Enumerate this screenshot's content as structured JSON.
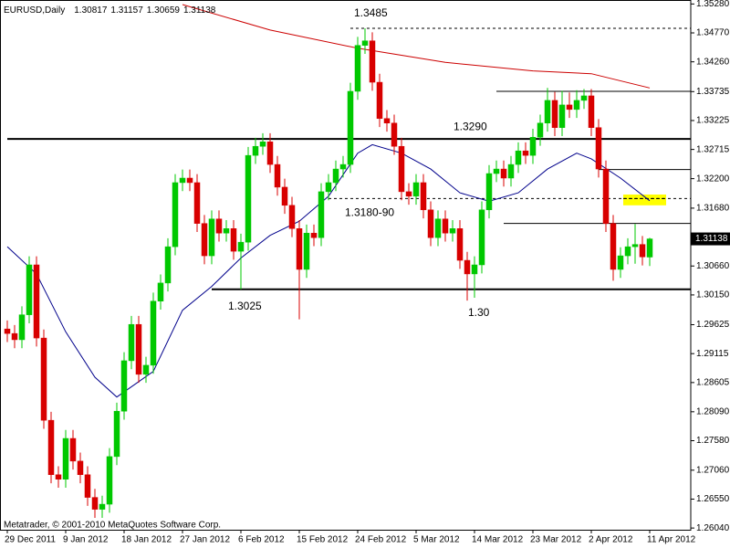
{
  "chart_data": {
    "type": "candlestick",
    "title": "EURUSD,Daily",
    "footer": "Metatrader, © 2001-2010 MetaQuotes Software Corp.",
    "categories": [
      "29 Dec 2011",
      null,
      null,
      null,
      null,
      null,
      null,
      null,
      "9 Jan 2012",
      null,
      null,
      null,
      null,
      null,
      null,
      null,
      "18 Jan 2012",
      null,
      null,
      null,
      null,
      null,
      null,
      null,
      "27 Jan 2012",
      null,
      null,
      null,
      null,
      null,
      null,
      null,
      "6 Feb 2012",
      null,
      null,
      null,
      null,
      null,
      null,
      null,
      "15 Feb 2012",
      null,
      null,
      null,
      null,
      null,
      null,
      null,
      "24 Feb 2012",
      null,
      null,
      null,
      null,
      null,
      null,
      null,
      "5 Mar 2012",
      null,
      null,
      null,
      null,
      null,
      null,
      null,
      "14 Mar 2012",
      null,
      null,
      null,
      null,
      null,
      null,
      null,
      "23 Mar 2012",
      null,
      null,
      null,
      null,
      null,
      null,
      null,
      "2 Apr 2012",
      null,
      null,
      null,
      null,
      null,
      null,
      null,
      "11 Apr 2012"
    ],
    "open": [
      1.2955,
      1.2947,
      1.2936,
      1.298,
      1.3068,
      1.2939,
      1.2794,
      1.2698,
      1.269,
      1.2762,
      1.2722,
      1.2698,
      1.2658,
      1.2637,
      1.2646,
      1.273,
      1.281,
      1.2899,
      1.2963,
      1.2875,
      1.2891,
      1.3004,
      1.3036,
      1.31,
      1.3213,
      1.3221,
      1.3213,
      1.3141,
      1.3084,
      1.3149,
      1.3124,
      1.3132,
      1.3092,
      1.3108,
      1.3261,
      1.3277,
      1.3285,
      1.3245,
      1.3205,
      1.3173,
      1.3132,
      1.306,
      1.3124,
      1.3116,
      1.3197,
      1.3213,
      1.3237,
      1.3245,
      1.3374,
      1.3455,
      1.3463,
      1.339,
      1.3326,
      1.3318,
      1.3277,
      1.3197,
      1.3189,
      1.3213,
      1.3165,
      1.3116,
      1.3149,
      1.3124,
      1.3132,
      1.3076,
      1.3052,
      1.3068,
      1.3165,
      1.3229,
      1.3237,
      1.3221,
      1.3245,
      1.3269,
      1.3261,
      1.3293,
      1.3318,
      1.3358,
      1.331,
      1.335,
      1.3342,
      1.3358,
      1.3366,
      1.331,
      1.3237,
      1.3141,
      1.306,
      1.3084,
      1.31,
      1.3104,
      1.30817
    ],
    "high": [
      1.297,
      1.2962,
      1.2995,
      1.3083,
      1.3083,
      1.2954,
      1.2809,
      1.2713,
      1.2777,
      1.2777,
      1.2737,
      1.2713,
      1.2673,
      1.2661,
      1.2745,
      1.2825,
      1.2914,
      1.2978,
      1.2978,
      1.2906,
      1.3019,
      1.3051,
      1.3115,
      1.3228,
      1.3236,
      1.3236,
      1.3228,
      1.3156,
      1.3164,
      1.3164,
      1.3147,
      1.3147,
      1.3123,
      1.3276,
      1.3292,
      1.33,
      1.33,
      1.326,
      1.322,
      1.3188,
      1.3147,
      1.3139,
      1.3139,
      1.3212,
      1.3228,
      1.3252,
      1.326,
      1.3389,
      1.347,
      1.3485,
      1.3478,
      1.3405,
      1.3341,
      1.3333,
      1.3292,
      1.3212,
      1.3228,
      1.3228,
      1.318,
      1.3164,
      1.3164,
      1.3147,
      1.3147,
      1.3091,
      1.3083,
      1.318,
      1.3244,
      1.3252,
      1.3252,
      1.326,
      1.3284,
      1.3284,
      1.3308,
      1.3333,
      1.338,
      1.3373,
      1.3375,
      1.3372,
      1.3376,
      1.3378,
      1.3378,
      1.3325,
      1.3252,
      1.3156,
      1.3099,
      1.3115,
      1.314,
      1.3119,
      1.31157
    ],
    "low": [
      1.2932,
      1.2921,
      1.2921,
      1.2965,
      1.2924,
      1.2779,
      1.2683,
      1.2675,
      1.2675,
      1.2707,
      1.2683,
      1.2643,
      1.2622,
      1.2622,
      1.2631,
      1.2715,
      1.2795,
      1.2884,
      1.286,
      1.286,
      1.2876,
      1.2989,
      1.3021,
      1.3085,
      1.3198,
      1.3198,
      1.3126,
      1.3069,
      1.3069,
      1.3109,
      1.3109,
      1.3077,
      1.3025,
      1.3093,
      1.3246,
      1.3262,
      1.323,
      1.319,
      1.3158,
      1.3117,
      1.2972,
      1.3045,
      1.3101,
      1.3101,
      1.3182,
      1.3198,
      1.3222,
      1.323,
      1.3359,
      1.344,
      1.3375,
      1.3311,
      1.3303,
      1.3262,
      1.3182,
      1.3174,
      1.3174,
      1.315,
      1.3101,
      1.3101,
      1.3109,
      1.3109,
      1.3061,
      1.3005,
      1.301,
      1.3053,
      1.315,
      1.3214,
      1.3206,
      1.3206,
      1.323,
      1.3246,
      1.3246,
      1.3278,
      1.3303,
      1.3295,
      1.3295,
      1.3327,
      1.3327,
      1.3343,
      1.3295,
      1.3222,
      1.3126,
      1.304,
      1.3045,
      1.3069,
      1.307,
      1.3067,
      1.30659
    ],
    "close": [
      1.2947,
      1.2936,
      1.298,
      1.3068,
      1.2939,
      1.2794,
      1.2698,
      1.269,
      1.2762,
      1.2722,
      1.2698,
      1.2658,
      1.2637,
      1.2646,
      1.273,
      1.281,
      1.2899,
      1.2963,
      1.2875,
      1.2891,
      1.3004,
      1.3036,
      1.31,
      1.3213,
      1.3221,
      1.3213,
      1.3141,
      1.3084,
      1.3149,
      1.3124,
      1.3132,
      1.3092,
      1.3108,
      1.3261,
      1.3277,
      1.3285,
      1.3245,
      1.3205,
      1.3173,
      1.3132,
      1.306,
      1.3124,
      1.3116,
      1.3197,
      1.3213,
      1.3237,
      1.3245,
      1.3374,
      1.3455,
      1.3463,
      1.339,
      1.3326,
      1.3318,
      1.3277,
      1.3197,
      1.3189,
      1.3213,
      1.3165,
      1.3116,
      1.3149,
      1.3124,
      1.3132,
      1.3076,
      1.3052,
      1.3068,
      1.3165,
      1.3229,
      1.3237,
      1.3221,
      1.3245,
      1.3269,
      1.3261,
      1.3293,
      1.3318,
      1.3358,
      1.331,
      1.335,
      1.3342,
      1.3358,
      1.3366,
      1.331,
      1.3237,
      1.3141,
      1.306,
      1.3084,
      1.31,
      1.3104,
      1.3082,
      1.31138
    ],
    "up_color": "#00c800",
    "down_color": "#d80000",
    "moving_averages": [
      {
        "color": "#00008b",
        "x": [
          0,
          4,
          8,
          12,
          15,
          20,
          24,
          28,
          32,
          36,
          40,
          44,
          48,
          50,
          54,
          58,
          62,
          66,
          70,
          74,
          78,
          80,
          84,
          88
        ],
        "values": [
          1.31,
          1.3052,
          1.295,
          1.287,
          1.2835,
          1.288,
          1.2988,
          1.303,
          1.308,
          1.312,
          1.3145,
          1.3189,
          1.3265,
          1.328,
          1.3265,
          1.3237,
          1.3195,
          1.318,
          1.3195,
          1.3237,
          1.3265,
          1.3255,
          1.3221,
          1.3181
        ]
      },
      {
        "color": "#cc0000",
        "x": [
          24,
          36,
          48,
          60,
          72,
          80,
          88
        ],
        "values": [
          1.3527,
          1.3482,
          1.345,
          1.3425,
          1.341,
          1.3405,
          1.338
        ]
      }
    ],
    "levels": [
      {
        "value": 1.3485,
        "style": "dashed",
        "from": 47
      },
      {
        "value": 1.329,
        "label": "1.3290",
        "style": "thick",
        "from": 0
      },
      {
        "value": 1.3185,
        "label": "1.3180-90",
        "style": "dashed",
        "from": 44
      },
      {
        "value": 1.3025,
        "label": "1.3025",
        "style": "thick",
        "from": 28
      },
      {
        "value": 1.3374,
        "style": "thin",
        "from": 67
      },
      {
        "value": 1.3236,
        "style": "thin",
        "from": 81
      },
      {
        "value": 1.3141,
        "style": "thin",
        "from": 68
      }
    ],
    "annotations": [
      "1.30"
    ],
    "highlight": {
      "range": [
        1.3173,
        1.3192
      ],
      "color": "#ffff00"
    },
    "ylim": [
      1.2601,
      1.3535
    ],
    "yticks": [
      {
        "value": 1.3528,
        "label": "1.35280"
      },
      {
        "value": 1.3477,
        "label": "1.34770"
      },
      {
        "value": 1.3426,
        "label": "1.34260"
      },
      {
        "value": 1.33735,
        "label": "1.33735"
      },
      {
        "value": 1.33225,
        "label": "1.33225"
      },
      {
        "value": 1.32715,
        "label": "1.32715"
      },
      {
        "value": 1.322,
        "label": "1.32200"
      },
      {
        "value": 1.3168,
        "label": "1.31680"
      },
      {
        "value": 1.3066,
        "label": "1.30660"
      },
      {
        "value": 1.3015,
        "label": "1.30150"
      },
      {
        "value": 1.29625,
        "label": "1.29625"
      },
      {
        "value": 1.29115,
        "label": "1.29115"
      },
      {
        "value": 1.28605,
        "label": "1.28605"
      },
      {
        "value": 1.2809,
        "label": "1.28090"
      },
      {
        "value": 1.2758,
        "label": "1.27580"
      },
      {
        "value": 1.2706,
        "label": "1.27060"
      },
      {
        "value": 1.2655,
        "label": "1.26550"
      },
      {
        "value": 1.2604,
        "label": "1.26040"
      }
    ]
  }
}
